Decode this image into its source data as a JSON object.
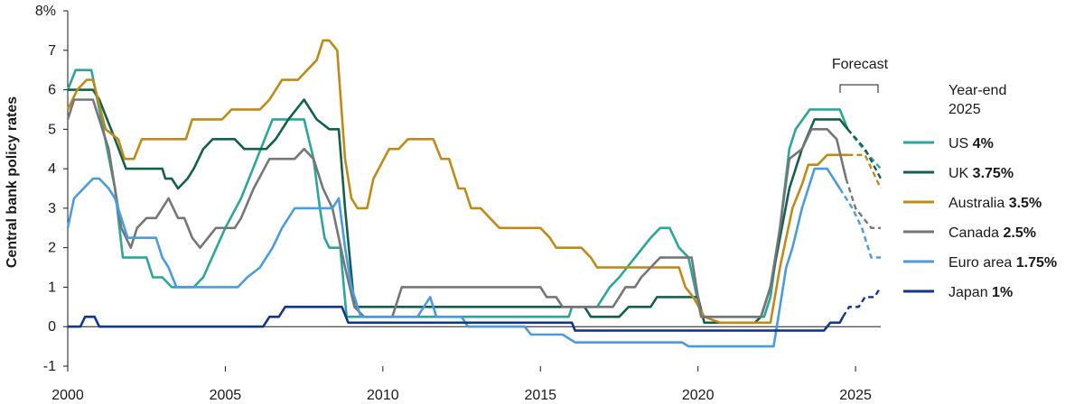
{
  "chart_data": {
    "type": "line",
    "ylabel": "Central bank policy rates",
    "ylim": [
      -1,
      8
    ],
    "xlim": [
      2000,
      2025.8
    ],
    "y_ticks": [
      "8%",
      "7",
      "6",
      "5",
      "4",
      "3",
      "2",
      "1",
      "0",
      "-1"
    ],
    "x_ticks": [
      "2000",
      "2005",
      "2010",
      "2015",
      "2020",
      "2025"
    ],
    "forecast_label": "Forecast",
    "forecast_start": 2024.5,
    "legend_title": [
      "Year-end",
      "2025"
    ],
    "legend_position": "right",
    "grid": false,
    "series": [
      {
        "name": "US",
        "value_label": "4%",
        "color": "#2aa69a",
        "values": [
          [
            2000,
            6
          ],
          [
            2000.25,
            6.5
          ],
          [
            2000.75,
            6.5
          ],
          [
            2001,
            5.5
          ],
          [
            2001.5,
            3.5
          ],
          [
            2001.75,
            1.75
          ],
          [
            2002.5,
            1.75
          ],
          [
            2002.7,
            1.25
          ],
          [
            2003,
            1.25
          ],
          [
            2003.3,
            1
          ],
          [
            2004,
            1
          ],
          [
            2004.3,
            1.25
          ],
          [
            2005,
            2.5
          ],
          [
            2005.5,
            3.25
          ],
          [
            2006,
            4.25
          ],
          [
            2006.5,
            5.25
          ],
          [
            2007.5,
            5.25
          ],
          [
            2007.8,
            4.25
          ],
          [
            2008,
            3
          ],
          [
            2008.15,
            2.25
          ],
          [
            2008.3,
            2
          ],
          [
            2008.65,
            2
          ],
          [
            2008.85,
            0.25
          ],
          [
            2015.9,
            0.25
          ],
          [
            2016,
            0.5
          ],
          [
            2016.8,
            0.5
          ],
          [
            2017.2,
            1
          ],
          [
            2017.5,
            1.25
          ],
          [
            2018,
            1.75
          ],
          [
            2018.5,
            2.25
          ],
          [
            2018.8,
            2.5
          ],
          [
            2019.1,
            2.5
          ],
          [
            2019.4,
            2
          ],
          [
            2019.7,
            1.75
          ],
          [
            2020.1,
            0.25
          ],
          [
            2022.1,
            0.25
          ],
          [
            2022.3,
            0.75
          ],
          [
            2022.6,
            2.5
          ],
          [
            2022.9,
            4.5
          ],
          [
            2023.1,
            5
          ],
          [
            2023.55,
            5.5
          ],
          [
            2024.5,
            5.5
          ],
          [
            2024.75,
            5
          ],
          [
            2025,
            4.5
          ],
          [
            2025.8,
            4
          ]
        ],
        "forecast": [
          [
            2024.75,
            5
          ],
          [
            2025.25,
            4.5
          ],
          [
            2025.8,
            4
          ]
        ]
      },
      {
        "name": "UK",
        "value_label": "3.75%",
        "color": "#14604f",
        "values": [
          [
            2000,
            6
          ],
          [
            2000.8,
            6
          ],
          [
            2001,
            5.75
          ],
          [
            2001.5,
            4.75
          ],
          [
            2001.85,
            4
          ],
          [
            2003,
            4
          ],
          [
            2003.1,
            3.75
          ],
          [
            2003.3,
            3.75
          ],
          [
            2003.5,
            3.5
          ],
          [
            2003.8,
            3.75
          ],
          [
            2004,
            4
          ],
          [
            2004.3,
            4.5
          ],
          [
            2004.6,
            4.75
          ],
          [
            2005.3,
            4.75
          ],
          [
            2005.6,
            4.5
          ],
          [
            2006.3,
            4.5
          ],
          [
            2006.6,
            4.75
          ],
          [
            2007,
            5.25
          ],
          [
            2007.5,
            5.75
          ],
          [
            2007.9,
            5.25
          ],
          [
            2008.3,
            5
          ],
          [
            2008.6,
            5
          ],
          [
            2008.8,
            3
          ],
          [
            2009.1,
            0.5
          ],
          [
            2016.4,
            0.5
          ],
          [
            2016.6,
            0.25
          ],
          [
            2017.5,
            0.25
          ],
          [
            2017.8,
            0.5
          ],
          [
            2018.5,
            0.5
          ],
          [
            2018.7,
            0.75
          ],
          [
            2020,
            0.75
          ],
          [
            2020.2,
            0.1
          ],
          [
            2021.8,
            0.1
          ],
          [
            2022,
            0.25
          ],
          [
            2022.3,
            1
          ],
          [
            2022.6,
            2.25
          ],
          [
            2022.9,
            3.5
          ],
          [
            2023.3,
            4.5
          ],
          [
            2023.7,
            5.25
          ],
          [
            2024.5,
            5.25
          ],
          [
            2024.75,
            5
          ],
          [
            2025,
            4.75
          ],
          [
            2025.8,
            3.75
          ]
        ],
        "forecast": [
          [
            2024.75,
            5
          ],
          [
            2025.3,
            4.5
          ],
          [
            2025.8,
            3.75
          ]
        ]
      },
      {
        "name": "Australia",
        "value_label": "3.5%",
        "color": "#c08a17",
        "values": [
          [
            2000,
            5.5
          ],
          [
            2000.3,
            6
          ],
          [
            2000.6,
            6.25
          ],
          [
            2000.8,
            6.25
          ],
          [
            2001.2,
            5
          ],
          [
            2001.6,
            4.75
          ],
          [
            2001.8,
            4.25
          ],
          [
            2002.1,
            4.25
          ],
          [
            2002.35,
            4.75
          ],
          [
            2003.75,
            4.75
          ],
          [
            2003.95,
            5.25
          ],
          [
            2004.9,
            5.25
          ],
          [
            2005.2,
            5.5
          ],
          [
            2006.1,
            5.5
          ],
          [
            2006.4,
            5.75
          ],
          [
            2006.8,
            6.25
          ],
          [
            2007.3,
            6.25
          ],
          [
            2007.6,
            6.5
          ],
          [
            2007.9,
            6.75
          ],
          [
            2008.1,
            7.25
          ],
          [
            2008.3,
            7.25
          ],
          [
            2008.55,
            7
          ],
          [
            2008.8,
            4.25
          ],
          [
            2009,
            3.25
          ],
          [
            2009.2,
            3
          ],
          [
            2009.5,
            3
          ],
          [
            2009.7,
            3.75
          ],
          [
            2010.2,
            4.5
          ],
          [
            2010.5,
            4.5
          ],
          [
            2010.8,
            4.75
          ],
          [
            2011.6,
            4.75
          ],
          [
            2011.85,
            4.25
          ],
          [
            2012.1,
            4.25
          ],
          [
            2012.4,
            3.5
          ],
          [
            2012.6,
            3.5
          ],
          [
            2012.8,
            3
          ],
          [
            2013.1,
            3
          ],
          [
            2013.4,
            2.75
          ],
          [
            2013.7,
            2.5
          ],
          [
            2015,
            2.5
          ],
          [
            2015.3,
            2.25
          ],
          [
            2015.5,
            2
          ],
          [
            2016.3,
            2
          ],
          [
            2016.6,
            1.75
          ],
          [
            2016.8,
            1.5
          ],
          [
            2019.4,
            1.5
          ],
          [
            2019.6,
            1
          ],
          [
            2019.85,
            0.75
          ],
          [
            2020.2,
            0.25
          ],
          [
            2020.7,
            0.1
          ],
          [
            2022.3,
            0.1
          ],
          [
            2022.6,
            1.5
          ],
          [
            2023.0,
            3
          ],
          [
            2023.3,
            3.6
          ],
          [
            2023.5,
            4.1
          ],
          [
            2023.8,
            4.1
          ],
          [
            2024.1,
            4.35
          ],
          [
            2024.75,
            4.35
          ],
          [
            2025.2,
            4.35
          ],
          [
            2025.8,
            3.5
          ]
        ],
        "forecast": [
          [
            2024.75,
            4.35
          ],
          [
            2025.3,
            4.35
          ],
          [
            2025.8,
            3.5
          ]
        ]
      },
      {
        "name": "Canada",
        "value_label": "2.5%",
        "color": "#767676",
        "values": [
          [
            2000,
            5.25
          ],
          [
            2000.2,
            5.75
          ],
          [
            2000.8,
            5.75
          ],
          [
            2001.3,
            4.5
          ],
          [
            2001.7,
            2.5
          ],
          [
            2002,
            2
          ],
          [
            2002.2,
            2.5
          ],
          [
            2002.5,
            2.75
          ],
          [
            2002.8,
            2.75
          ],
          [
            2003.2,
            3.25
          ],
          [
            2003.5,
            2.75
          ],
          [
            2003.7,
            2.75
          ],
          [
            2003.95,
            2.25
          ],
          [
            2004.2,
            2
          ],
          [
            2004.7,
            2.5
          ],
          [
            2005.3,
            2.5
          ],
          [
            2005.5,
            2.75
          ],
          [
            2005.9,
            3.5
          ],
          [
            2006.4,
            4.25
          ],
          [
            2007.2,
            4.25
          ],
          [
            2007.5,
            4.5
          ],
          [
            2007.8,
            4.25
          ],
          [
            2008.1,
            3.5
          ],
          [
            2008.4,
            3
          ],
          [
            2008.8,
            1.5
          ],
          [
            2009.1,
            0.5
          ],
          [
            2009.4,
            0.25
          ],
          [
            2010.3,
            0.25
          ],
          [
            2010.5,
            0.75
          ],
          [
            2010.6,
            1
          ],
          [
            2015,
            1
          ],
          [
            2015.2,
            0.75
          ],
          [
            2015.5,
            0.75
          ],
          [
            2015.7,
            0.5
          ],
          [
            2017.3,
            0.5
          ],
          [
            2017.5,
            0.75
          ],
          [
            2017.7,
            1
          ],
          [
            2018,
            1
          ],
          [
            2018.2,
            1.25
          ],
          [
            2018.5,
            1.5
          ],
          [
            2018.8,
            1.75
          ],
          [
            2019.8,
            1.75
          ],
          [
            2020.1,
            0.25
          ],
          [
            2022,
            0.25
          ],
          [
            2022.3,
            1
          ],
          [
            2022.6,
            2.5
          ],
          [
            2022.9,
            4.25
          ],
          [
            2023.3,
            4.5
          ],
          [
            2023.6,
            5
          ],
          [
            2024.1,
            5
          ],
          [
            2024.4,
            4.75
          ],
          [
            2024.7,
            3.75
          ],
          [
            2025.8,
            2.5
          ]
        ],
        "forecast": [
          [
            2024.7,
            3.75
          ],
          [
            2025,
            3
          ],
          [
            2025.5,
            2.5
          ],
          [
            2025.8,
            2.5
          ]
        ]
      },
      {
        "name": "Euro area",
        "value_label": "1.75%",
        "color": "#4a9be0",
        "values": [
          [
            2000,
            2.5
          ],
          [
            2000.2,
            3.25
          ],
          [
            2000.5,
            3.5
          ],
          [
            2000.8,
            3.75
          ],
          [
            2001,
            3.75
          ],
          [
            2001.3,
            3.5
          ],
          [
            2001.5,
            3.25
          ],
          [
            2001.7,
            2.75
          ],
          [
            2001.9,
            2.25
          ],
          [
            2002.8,
            2.25
          ],
          [
            2003,
            1.75
          ],
          [
            2003.2,
            1.5
          ],
          [
            2003.45,
            1
          ],
          [
            2005.4,
            1
          ],
          [
            2005.7,
            1.25
          ],
          [
            2006.1,
            1.5
          ],
          [
            2006.5,
            2
          ],
          [
            2006.8,
            2.5
          ],
          [
            2007.2,
            3
          ],
          [
            2008.4,
            3
          ],
          [
            2008.6,
            3.25
          ],
          [
            2008.8,
            2
          ],
          [
            2009,
            1
          ],
          [
            2009.3,
            0.25
          ],
          [
            2011.1,
            0.25
          ],
          [
            2011.3,
            0.5
          ],
          [
            2011.5,
            0.75
          ],
          [
            2011.7,
            0.25
          ],
          [
            2012.5,
            0.25
          ],
          [
            2012.7,
            0
          ],
          [
            2014.5,
            0
          ],
          [
            2014.7,
            -0.2
          ],
          [
            2015.7,
            -0.2
          ],
          [
            2016.1,
            -0.4
          ],
          [
            2019.5,
            -0.4
          ],
          [
            2019.7,
            -0.5
          ],
          [
            2022.4,
            -0.5
          ],
          [
            2022.6,
            0.5
          ],
          [
            2022.8,
            1.5
          ],
          [
            2023,
            2
          ],
          [
            2023.3,
            3
          ],
          [
            2023.7,
            4
          ],
          [
            2024.1,
            4
          ],
          [
            2024.3,
            3.75
          ],
          [
            2024.5,
            3.5
          ],
          [
            2025.8,
            1.75
          ]
        ],
        "forecast": [
          [
            2024.5,
            3.5
          ],
          [
            2024.9,
            3
          ],
          [
            2025.2,
            2.5
          ],
          [
            2025.5,
            1.75
          ],
          [
            2025.8,
            1.75
          ]
        ]
      },
      {
        "name": "Japan",
        "value_label": "1%",
        "color": "#12378f",
        "values": [
          [
            2000,
            0
          ],
          [
            2000.4,
            0
          ],
          [
            2000.55,
            0.25
          ],
          [
            2000.85,
            0.25
          ],
          [
            2001,
            0
          ],
          [
            2006.2,
            0
          ],
          [
            2006.4,
            0.25
          ],
          [
            2006.7,
            0.25
          ],
          [
            2006.9,
            0.5
          ],
          [
            2008.7,
            0.5
          ],
          [
            2008.9,
            0.1
          ],
          [
            2016,
            0.1
          ],
          [
            2016.1,
            -0.1
          ],
          [
            2024,
            -0.1
          ],
          [
            2024.2,
            0.1
          ],
          [
            2024.5,
            0.1
          ],
          [
            2024.6,
            0.25
          ],
          [
            2025.8,
            1
          ]
        ],
        "forecast": [
          [
            2024.6,
            0.25
          ],
          [
            2024.8,
            0.5
          ],
          [
            2025.1,
            0.5
          ],
          [
            2025.3,
            0.75
          ],
          [
            2025.6,
            0.75
          ],
          [
            2025.8,
            1
          ]
        ]
      }
    ]
  }
}
